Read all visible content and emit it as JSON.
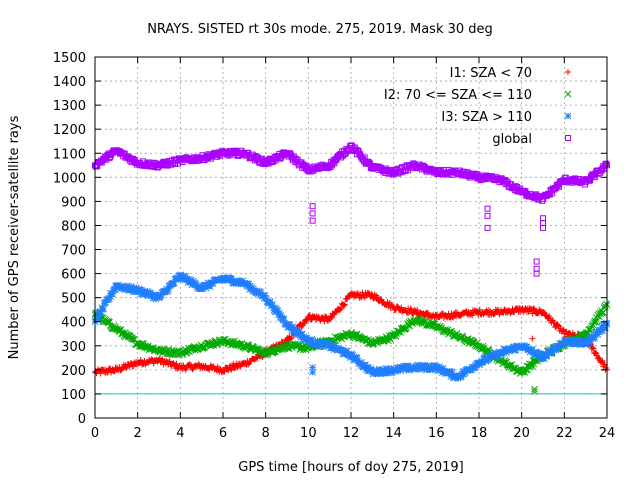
{
  "chart_data": {
    "type": "scatter",
    "title": "NRAYS. SISTED rt 30s mode. 275, 2019. Mask 30 deg",
    "xlabel": "GPS time [hours of doy 275, 2019]",
    "ylabel": "Number of GPS receiver-satellite rays",
    "xlim": [
      0,
      24
    ],
    "ylim": [
      0,
      1500
    ],
    "x_ticks": [
      "0",
      "2",
      "4",
      "6",
      "8",
      "10",
      "12",
      "14",
      "16",
      "18",
      "20",
      "22",
      "24"
    ],
    "y_ticks": [
      "0",
      "100",
      "200",
      "300",
      "400",
      "500",
      "600",
      "700",
      "800",
      "900",
      "1000",
      "1100",
      "1200",
      "1300",
      "1400",
      "1500"
    ],
    "grid": true,
    "legend_position": "top-right",
    "reference_line": {
      "y": 100,
      "color": "#00cccc"
    },
    "series": [
      {
        "name": "I1: SZA < 70",
        "marker": "+",
        "color": "#ff0000",
        "x": [
          0,
          1,
          2,
          3,
          4,
          5,
          6,
          7,
          8,
          9,
          10,
          11,
          12,
          13,
          14,
          15,
          16,
          17,
          18,
          19,
          20,
          21,
          22,
          23,
          24
        ],
        "values": [
          190,
          200,
          230,
          240,
          210,
          215,
          200,
          225,
          270,
          320,
          420,
          410,
          510,
          510,
          460,
          440,
          420,
          430,
          440,
          440,
          450,
          440,
          350,
          330,
          200
        ]
      },
      {
        "name": "I2: 70 <= SZA <= 110",
        "marker": "x",
        "color": "#00aa00",
        "x": [
          0,
          1,
          2,
          3,
          4,
          5,
          6,
          7,
          8,
          9,
          10,
          11,
          12,
          13,
          14,
          15,
          16,
          17,
          18,
          19,
          20,
          21,
          22,
          23,
          24
        ],
        "values": [
          430,
          370,
          310,
          280,
          270,
          300,
          320,
          300,
          270,
          300,
          290,
          320,
          350,
          310,
          340,
          410,
          380,
          340,
          300,
          240,
          190,
          260,
          310,
          350,
          470
        ]
      },
      {
        "name": "I3: SZA > 110",
        "marker": "*",
        "color": "#1f7fff",
        "x": [
          0,
          1,
          2,
          3,
          4,
          5,
          6,
          7,
          8,
          9,
          10,
          11,
          12,
          13,
          14,
          15,
          16,
          17,
          18,
          19,
          20,
          21,
          22,
          23,
          24
        ],
        "values": [
          400,
          550,
          530,
          500,
          590,
          540,
          580,
          560,
          500,
          390,
          320,
          300,
          260,
          190,
          200,
          210,
          210,
          170,
          230,
          270,
          300,
          250,
          320,
          310,
          390
        ]
      },
      {
        "name": "global",
        "marker": "square",
        "color": "#aa00ff",
        "x": [
          0,
          1,
          2,
          3,
          4,
          5,
          6,
          7,
          8,
          9,
          10,
          11,
          12,
          13,
          14,
          15,
          16,
          17,
          18,
          19,
          20,
          21,
          22,
          23,
          24
        ],
        "values": [
          1050,
          1110,
          1060,
          1050,
          1070,
          1080,
          1100,
          1100,
          1060,
          1100,
          1030,
          1050,
          1130,
          1040,
          1020,
          1050,
          1020,
          1020,
          1000,
          990,
          940,
          910,
          990,
          980,
          1050
        ]
      }
    ],
    "outliers": [
      {
        "series": "global",
        "x": 10.2,
        "values": [
          820,
          850,
          880
        ]
      },
      {
        "series": "global",
        "x": 18.4,
        "values": [
          790,
          840,
          870
        ]
      },
      {
        "series": "global",
        "x": 20.7,
        "values": [
          600,
          620,
          650
        ]
      },
      {
        "series": "global",
        "x": 21.0,
        "values": [
          790,
          810,
          830
        ]
      },
      {
        "series": "I1: SZA < 70",
        "x": 20.5,
        "values": [
          330
        ]
      },
      {
        "series": "I2: 70 <= SZA <= 110",
        "x": 20.6,
        "values": [
          110,
          120
        ]
      },
      {
        "series": "I3: SZA > 110",
        "x": 10.2,
        "values": [
          190,
          210
        ]
      }
    ]
  }
}
